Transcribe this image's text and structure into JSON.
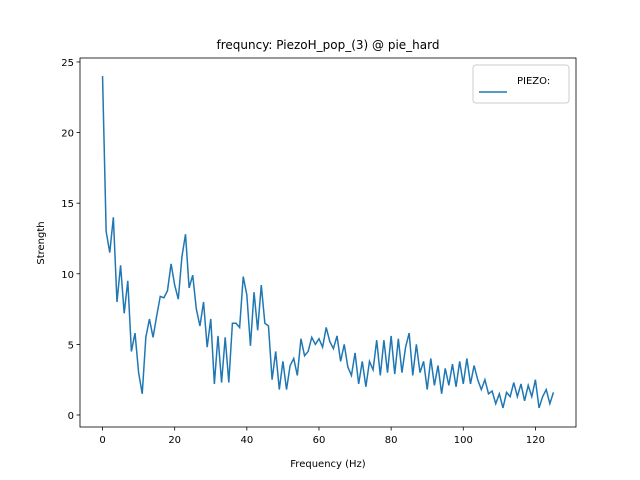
{
  "chart_data": {
    "type": "line",
    "title": "frequncy: PiezoH_pop_(3) @ pie_hard",
    "x_label": "Frequency (Hz)",
    "y_label": "Strength",
    "x": [
      0,
      1,
      2,
      3,
      4,
      5,
      6,
      7,
      8,
      9,
      10,
      11,
      12,
      13,
      14,
      15,
      16,
      17,
      18,
      19,
      20,
      21,
      22,
      23,
      24,
      25,
      26,
      27,
      28,
      29,
      30,
      31,
      32,
      33,
      34,
      35,
      36,
      37,
      38,
      39,
      40,
      41,
      42,
      43,
      44,
      45,
      46,
      47,
      48,
      49,
      50,
      51,
      52,
      53,
      54,
      55,
      56,
      57,
      58,
      59,
      60,
      61,
      62,
      63,
      64,
      65,
      66,
      67,
      68,
      69,
      70,
      71,
      72,
      73,
      74,
      75,
      76,
      77,
      78,
      79,
      80,
      81,
      82,
      83,
      84,
      85,
      86,
      87,
      88,
      89,
      90,
      91,
      92,
      93,
      94,
      95,
      96,
      97,
      98,
      99,
      100,
      101,
      102,
      103,
      104,
      105,
      106,
      107,
      108,
      109,
      110,
      111,
      112,
      113,
      114,
      115,
      116,
      117,
      118,
      119,
      120,
      121,
      122,
      123,
      124,
      125
    ],
    "series": [
      {
        "name": "PIEZO:",
        "color": "#1f77b4",
        "values": [
          24,
          13,
          11.5,
          14,
          8,
          10.6,
          7.2,
          9.5,
          4.5,
          5.8,
          3,
          1.5,
          5.5,
          6.8,
          5.5,
          7,
          8.4,
          8.3,
          8.8,
          10.7,
          9.2,
          8.2,
          11.2,
          12.8,
          9,
          9.9,
          7.5,
          6.3,
          8,
          4.8,
          6.8,
          2.2,
          5.6,
          2.3,
          5.5,
          2.3,
          6.5,
          6.5,
          6.2,
          9.8,
          8.5,
          4.9,
          8.7,
          6,
          9.2,
          6.5,
          6.3,
          2.5,
          4.5,
          1.8,
          3.8,
          1.8,
          3.5,
          4,
          2.8,
          5.4,
          4.2,
          4.5,
          5.5,
          5,
          5.4,
          4.8,
          6.2,
          5.2,
          4.7,
          5.6,
          3.8,
          5,
          3.4,
          2.8,
          4.4,
          2.2,
          3.8,
          2,
          3.8,
          3.2,
          5.3,
          2.8,
          5.3,
          3,
          5.6,
          2.9,
          5.4,
          3,
          4.8,
          5.8,
          2.8,
          5,
          3,
          3.8,
          1.8,
          4,
          2.1,
          3.5,
          1.5,
          3.3,
          2.1,
          3.6,
          2,
          3.8,
          2.2,
          4,
          2.2,
          3.5,
          2.5,
          1.8,
          2.5,
          1.5,
          1.7,
          0.8,
          1.5,
          0.5,
          1.6,
          1.3,
          2.3,
          1.3,
          2.2,
          1,
          2.1,
          1.3,
          2.5,
          0.5,
          1.3,
          1.8,
          0.8,
          1.6
        ]
      }
    ],
    "xlim": [
      -6.25,
      131.25
    ],
    "ylim": [
      -0.85,
      25.28
    ],
    "xticks": [
      0,
      20,
      40,
      60,
      80,
      100,
      120
    ],
    "yticks": [
      0,
      5,
      10,
      15,
      20,
      25
    ],
    "legend": "upper right"
  }
}
